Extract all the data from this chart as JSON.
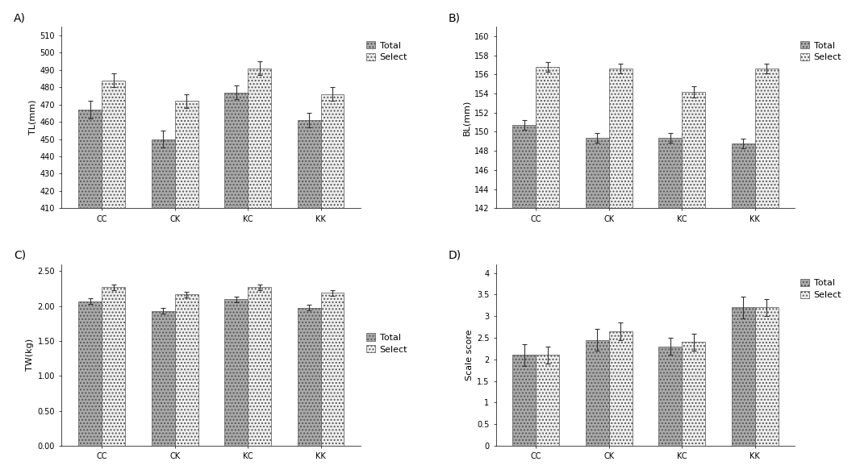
{
  "categories": [
    "CC",
    "CK",
    "KC",
    "KK"
  ],
  "panels": [
    {
      "label": "A)",
      "ylabel": "TL(mm)",
      "ylim": [
        410,
        515
      ],
      "yticks": [
        410,
        420,
        430,
        440,
        450,
        460,
        470,
        480,
        490,
        500,
        510
      ],
      "total_vals": [
        467,
        450,
        477,
        461
      ],
      "total_err": [
        5,
        5,
        4,
        4
      ],
      "select_vals": [
        484,
        472,
        491,
        476
      ],
      "select_err": [
        4,
        4,
        4,
        4
      ],
      "nonzero_base": true
    },
    {
      "label": "B)",
      "ylabel": "BL(mm)",
      "ylim": [
        142,
        161
      ],
      "yticks": [
        142,
        144,
        146,
        148,
        150,
        152,
        154,
        156,
        158,
        160
      ],
      "total_vals": [
        150.7,
        149.4,
        149.4,
        148.8
      ],
      "total_err": [
        0.5,
        0.5,
        0.5,
        0.5
      ],
      "select_vals": [
        156.8,
        156.6,
        154.2,
        156.6
      ],
      "select_err": [
        0.5,
        0.5,
        0.6,
        0.5
      ],
      "nonzero_base": true
    },
    {
      "label": "C)",
      "ylabel": "TW(kg)",
      "ylim": [
        0,
        2.6
      ],
      "yticks": [
        0.0,
        0.5,
        1.0,
        1.5,
        2.0,
        2.5
      ],
      "ytick_labels": [
        "0.00",
        "0.50",
        "1.00",
        "1.50",
        "2.00",
        "2.50"
      ],
      "total_vals": [
        2.07,
        1.93,
        2.1,
        1.98
      ],
      "total_err": [
        0.04,
        0.04,
        0.04,
        0.04
      ],
      "select_vals": [
        2.27,
        2.17,
        2.27,
        2.19
      ],
      "select_err": [
        0.04,
        0.04,
        0.04,
        0.04
      ],
      "nonzero_base": false
    },
    {
      "label": "D)",
      "ylabel": "Scale score",
      "ylim": [
        0,
        4.2
      ],
      "yticks": [
        0,
        0.5,
        1.0,
        1.5,
        2.0,
        2.5,
        3.0,
        3.5,
        4.0
      ],
      "ytick_labels": [
        "0",
        "0.5",
        "1",
        "1.5",
        "2",
        "2.5",
        "3",
        "3.5",
        "4"
      ],
      "total_vals": [
        2.1,
        2.45,
        2.3,
        3.2
      ],
      "total_err": [
        0.25,
        0.25,
        0.2,
        0.25
      ],
      "select_vals": [
        2.1,
        2.65,
        2.4,
        3.2
      ],
      "select_err": [
        0.2,
        0.2,
        0.2,
        0.2
      ],
      "nonzero_base": false
    }
  ],
  "total_color": "#aaaaaa",
  "select_color": "#f0f0f0",
  "total_hatch": "....",
  "select_hatch": "....",
  "bar_width": 0.32,
  "fontsize_label": 8,
  "fontsize_tick": 7,
  "fontsize_panel": 10,
  "fontsize_legend": 8
}
